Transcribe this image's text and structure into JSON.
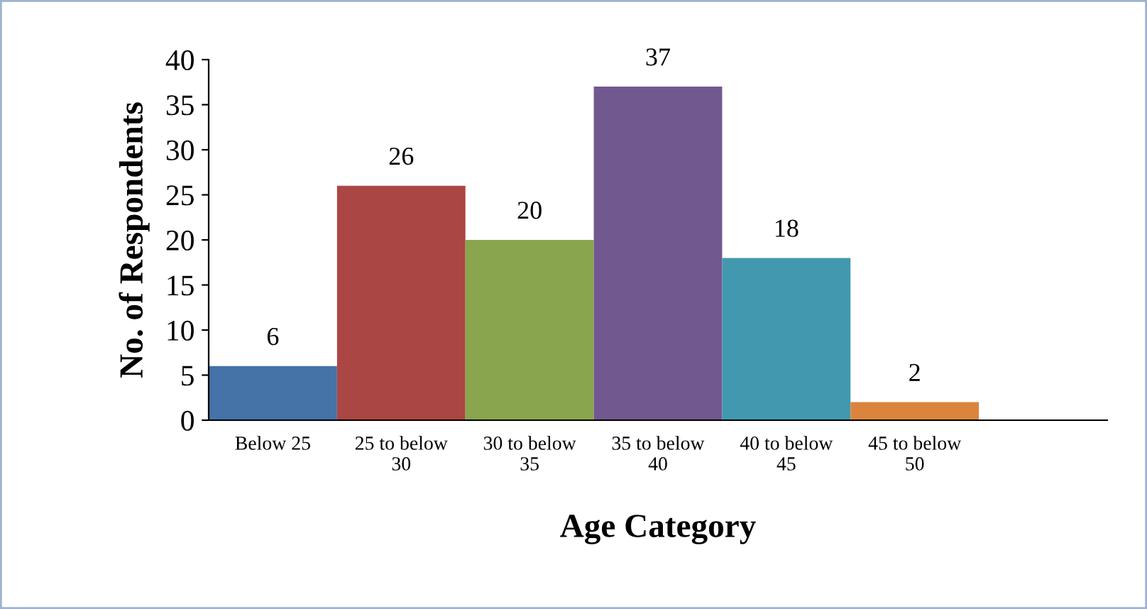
{
  "chart_data": {
    "type": "bar",
    "xlabel": "Age Category",
    "ylabel": "No. of Respondents",
    "categories": [
      "Below 25",
      "25 to below\n30",
      "30 to below\n35",
      "35 to below\n40",
      "40 to below\n45",
      "45 to below\n50",
      null
    ],
    "values": [
      6,
      26,
      20,
      37,
      18,
      2,
      null
    ],
    "colors": [
      "#4572a7",
      "#aa4643",
      "#89a54e",
      "#71588f",
      "#4198af",
      "#db843d",
      "#4572a7"
    ],
    "ylim": [
      0,
      40
    ],
    "yticks": [
      0,
      5,
      10,
      15,
      20,
      25,
      30,
      35,
      40
    ],
    "grid": false,
    "legend": false,
    "data_labels": true
  }
}
